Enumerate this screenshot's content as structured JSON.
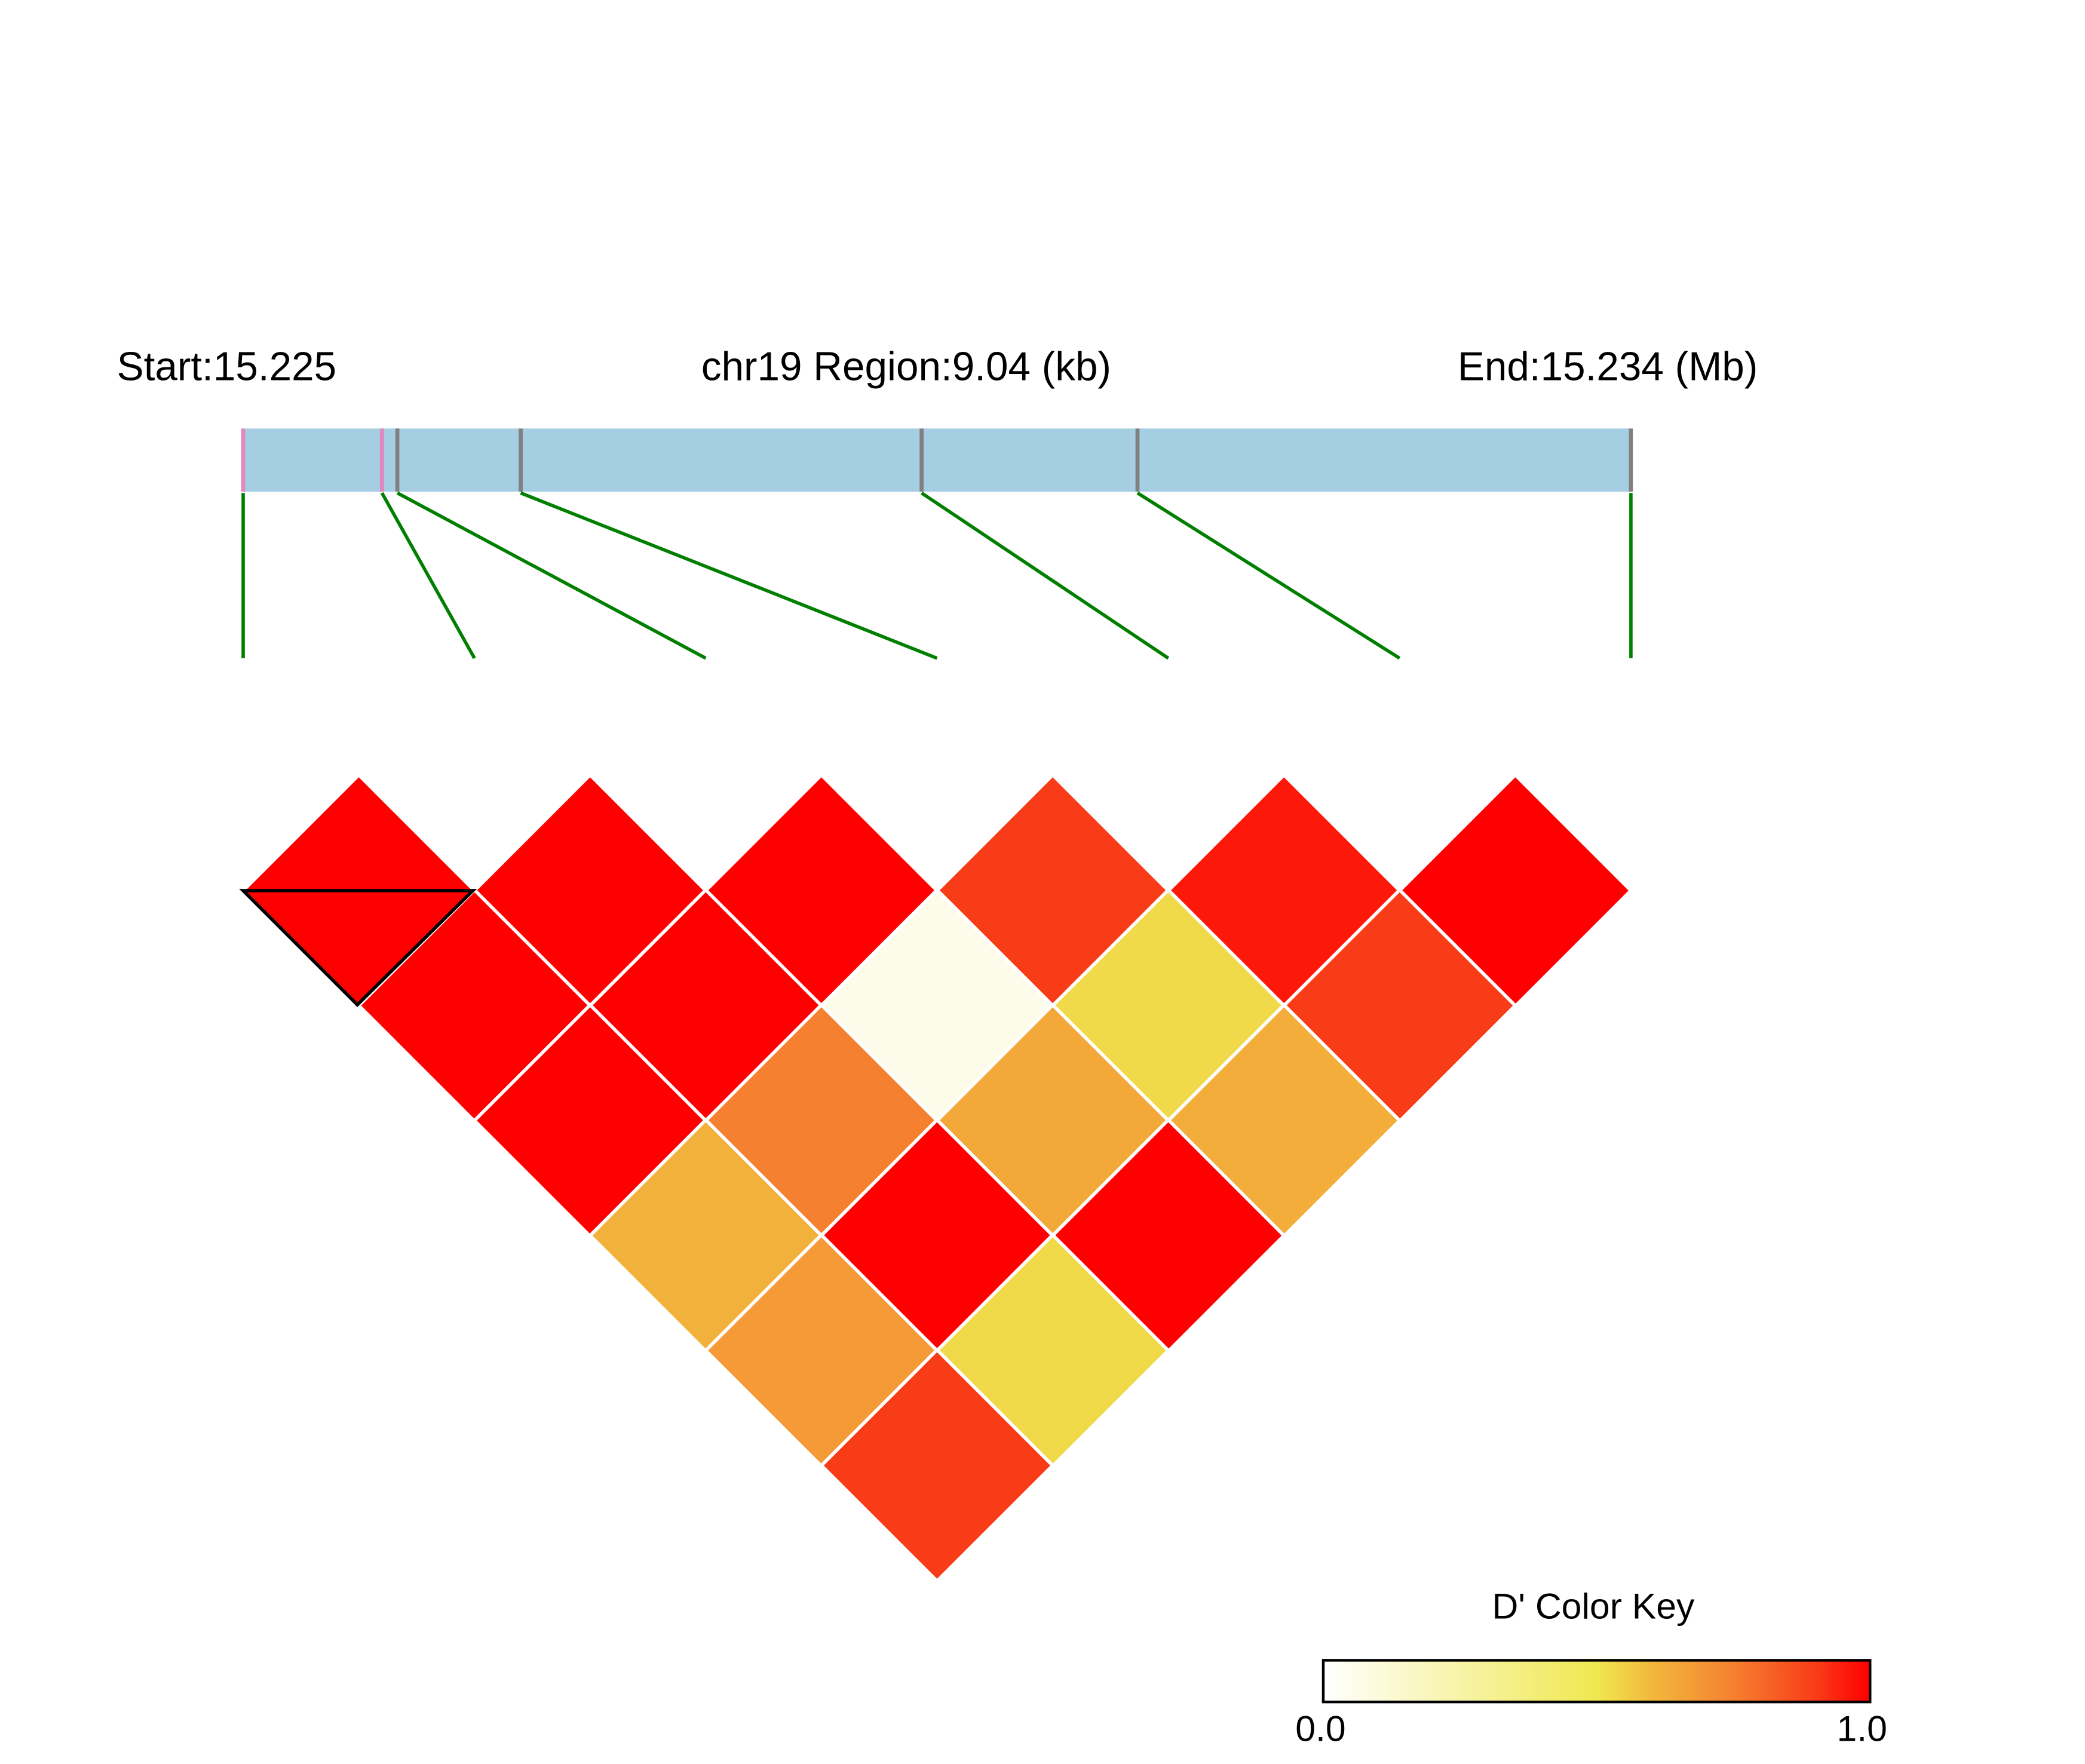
{
  "chart_data": {
    "type": "heatmap",
    "header": {
      "start_label": "Start:15.225",
      "region_label": "chr19 Region:9.04 (kb)",
      "end_label": "End:15.234 (Mb)"
    },
    "region": {
      "chromosome": "chr19",
      "start_mb": 15.225,
      "end_mb": 15.234,
      "length_kb": 9.04
    },
    "snp_positions_mb": [
      15.225,
      15.2259,
      15.226,
      15.2268,
      15.2294,
      15.2308,
      15.234
    ],
    "snp_tick_colors": [
      "#e088c0",
      "#e088c0",
      "#808080",
      "#808080",
      "#808080",
      "#808080",
      "#808080"
    ],
    "region_bar_color": "#a6cee3",
    "connector_color": "#007f00",
    "metric": "D'",
    "pairs": [
      {
        "i": 0,
        "j": 1,
        "value": 1.0
      },
      {
        "i": 1,
        "j": 2,
        "value": 1.0
      },
      {
        "i": 2,
        "j": 3,
        "value": 1.0
      },
      {
        "i": 3,
        "j": 4,
        "value": 0.9
      },
      {
        "i": 4,
        "j": 5,
        "value": 0.96
      },
      {
        "i": 5,
        "j": 6,
        "value": 1.0
      },
      {
        "i": 0,
        "j": 2,
        "value": 1.0
      },
      {
        "i": 1,
        "j": 3,
        "value": 1.0
      },
      {
        "i": 2,
        "j": 4,
        "value": 0.06
      },
      {
        "i": 3,
        "j": 5,
        "value": 0.53
      },
      {
        "i": 4,
        "j": 6,
        "value": 0.9
      },
      {
        "i": 0,
        "j": 3,
        "value": 1.0
      },
      {
        "i": 1,
        "j": 4,
        "value": 0.75
      },
      {
        "i": 2,
        "j": 5,
        "value": 0.64
      },
      {
        "i": 3,
        "j": 6,
        "value": 0.63
      },
      {
        "i": 0,
        "j": 4,
        "value": 0.62
      },
      {
        "i": 1,
        "j": 5,
        "value": 1.0
      },
      {
        "i": 2,
        "j": 6,
        "value": 1.0
      },
      {
        "i": 0,
        "j": 5,
        "value": 0.68
      },
      {
        "i": 1,
        "j": 6,
        "value": 0.53
      },
      {
        "i": 0,
        "j": 6,
        "value": 0.9
      }
    ],
    "highlighted_block": {
      "i": 0,
      "j": 1
    },
    "color_key": {
      "title": "D' Color Key",
      "min_label": "0.0",
      "max_label": "1.0",
      "range": [
        0,
        1
      ],
      "stops": [
        {
          "value": 0.0,
          "color": "#ffffff"
        },
        {
          "value": 0.5,
          "color": "#f0e850"
        },
        {
          "value": 0.6,
          "color": "#f2b83c"
        },
        {
          "value": 0.75,
          "color": "#f58030"
        },
        {
          "value": 0.9,
          "color": "#f93c18"
        },
        {
          "value": 1.0,
          "color": "#ff0000"
        }
      ]
    }
  }
}
